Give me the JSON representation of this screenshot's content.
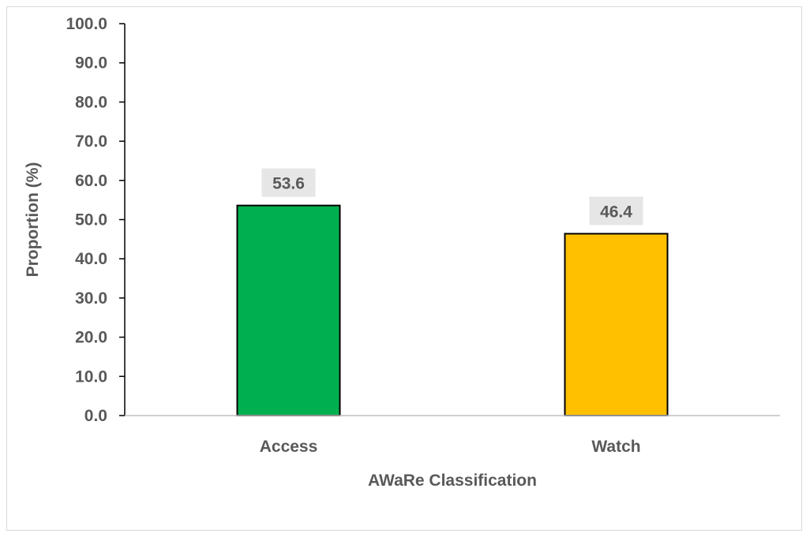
{
  "chart_data": {
    "type": "bar",
    "title": "",
    "xlabel": "AWaRe Classification",
    "ylabel": "Proportion (%)",
    "categories": [
      "Access",
      "Watch"
    ],
    "values": [
      53.6,
      46.4
    ],
    "data_labels": [
      "53.6",
      "46.4"
    ],
    "ylim": [
      0,
      100
    ],
    "yticks": [
      0,
      10,
      20,
      30,
      40,
      50,
      60,
      70,
      80,
      90,
      100
    ],
    "ytick_labels": [
      "0.0",
      "10.0",
      "20.0",
      "30.0",
      "40.0",
      "50.0",
      "60.0",
      "70.0",
      "80.0",
      "90.0",
      "100.0"
    ],
    "bar_colors": [
      "#00B050",
      "#FFC000"
    ],
    "bar_outline_color": "#000000",
    "data_label_background": "#E7E6E6",
    "text_color": "#595959",
    "grid": false,
    "legend": "none"
  }
}
